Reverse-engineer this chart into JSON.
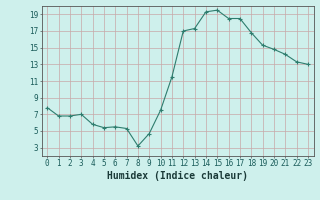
{
  "x": [
    0,
    1,
    2,
    3,
    4,
    5,
    6,
    7,
    8,
    9,
    10,
    11,
    12,
    13,
    14,
    15,
    16,
    17,
    18,
    19,
    20,
    21,
    22,
    23
  ],
  "y": [
    7.8,
    6.8,
    6.8,
    7.0,
    5.8,
    5.4,
    5.5,
    5.3,
    3.2,
    4.7,
    7.5,
    11.5,
    17.0,
    17.3,
    19.3,
    19.5,
    18.5,
    18.5,
    16.8,
    15.3,
    14.8,
    14.2,
    13.3,
    13.0
  ],
  "line_color": "#2e7d6e",
  "marker": "+",
  "marker_color": "#2e7d6e",
  "bg_color": "#cef0ec",
  "outer_bg": "#cef0ec",
  "grid_color": "#c8a8a8",
  "xlabel": "Humidex (Indice chaleur)",
  "xlim": [
    -0.5,
    23.5
  ],
  "ylim": [
    2,
    20
  ],
  "yticks": [
    3,
    5,
    7,
    9,
    11,
    13,
    15,
    17,
    19
  ],
  "xticks": [
    0,
    1,
    2,
    3,
    4,
    5,
    6,
    7,
    8,
    9,
    10,
    11,
    12,
    13,
    14,
    15,
    16,
    17,
    18,
    19,
    20,
    21,
    22,
    23
  ],
  "tick_label_fontsize": 5.5,
  "xlabel_fontsize": 7.0
}
